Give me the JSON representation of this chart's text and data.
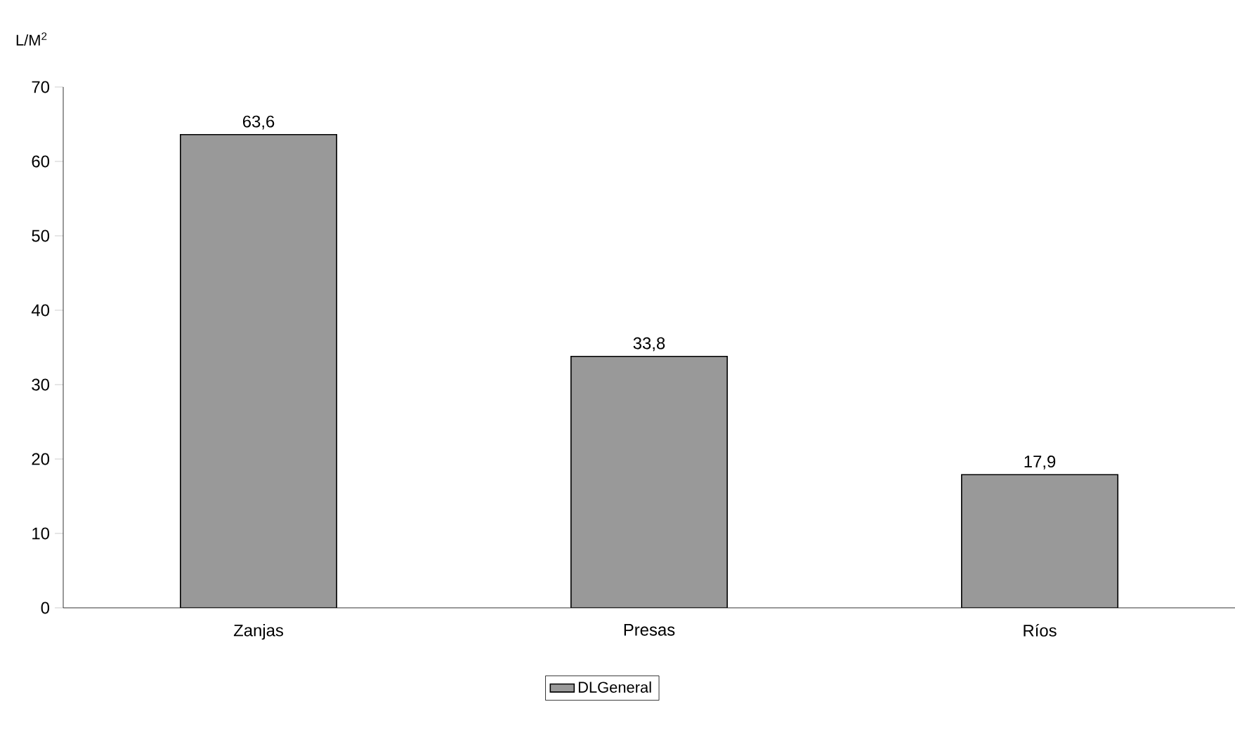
{
  "chart_data": {
    "type": "bar",
    "ylabel": "L/M$^{2}$",
    "categories": [
      "Zanjas",
      "Presas",
      "Ríos"
    ],
    "series": [
      {
        "name": "DLGeneral",
        "color": "#999999",
        "values": [
          63.6,
          33.8,
          17.9
        ],
        "value_labels": [
          "63,6",
          "33,8",
          "17,9"
        ]
      }
    ],
    "ylim": [
      0,
      70
    ],
    "yticks": [
      0,
      10,
      20,
      30,
      40,
      50,
      60,
      70
    ],
    "legend": "bottom",
    "grid": false
  }
}
